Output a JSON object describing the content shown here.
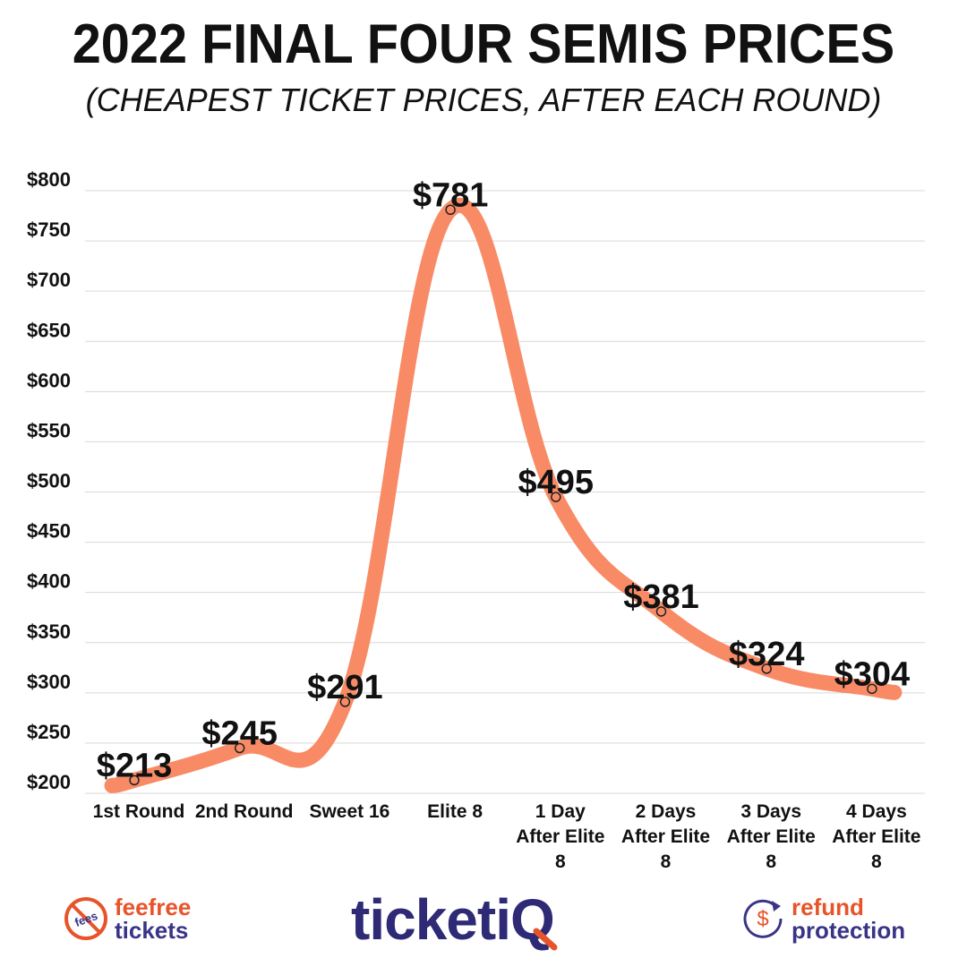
{
  "header": {
    "title": "2022 FINAL FOUR SEMIS PRICES",
    "subtitle": "(CHEAPEST TICKET PRICES, AFTER EACH ROUND)"
  },
  "chart_data": {
    "type": "line",
    "title": "2022 FINAL FOUR SEMIS PRICES",
    "subtitle": "(CHEAPEST TICKET PRICES, AFTER EACH ROUND)",
    "categories": [
      [
        "1st Round"
      ],
      [
        "2nd Round"
      ],
      [
        "Sweet 16"
      ],
      [
        "Elite 8"
      ],
      [
        "1 Day",
        "After Elite",
        "8"
      ],
      [
        "2 Days",
        "After Elite",
        "8"
      ],
      [
        "3 Days",
        "After Elite",
        "8"
      ],
      [
        "4 Days",
        "After Elite",
        "8"
      ]
    ],
    "values": [
      213,
      245,
      291,
      781,
      495,
      381,
      324,
      304
    ],
    "data_labels": [
      "$213",
      "$245",
      "$291",
      "$781",
      "$495",
      "$381",
      "$324",
      "$304"
    ],
    "y_ticks": [
      200,
      250,
      300,
      350,
      400,
      450,
      500,
      550,
      600,
      650,
      700,
      750,
      800
    ],
    "y_tick_labels": [
      "$200",
      "$250",
      "$300",
      "$350",
      "$400",
      "$450",
      "$500",
      "$550",
      "$600",
      "$650",
      "$700",
      "$750",
      "$800"
    ],
    "ylim": [
      200,
      800
    ],
    "grid": true,
    "line_color": "#f88b66",
    "xlabel": "",
    "ylabel": ""
  },
  "footer": {
    "left_badge_text": "fees",
    "left_top": "feefree",
    "left_bottom": "tickets",
    "center_main": "ticket",
    "center_accent": "iQ",
    "right_badge_text": "$",
    "right_top": "refund",
    "right_bottom": "protection",
    "accent_color": "#e8542a",
    "brand_color": "#3a3487"
  }
}
